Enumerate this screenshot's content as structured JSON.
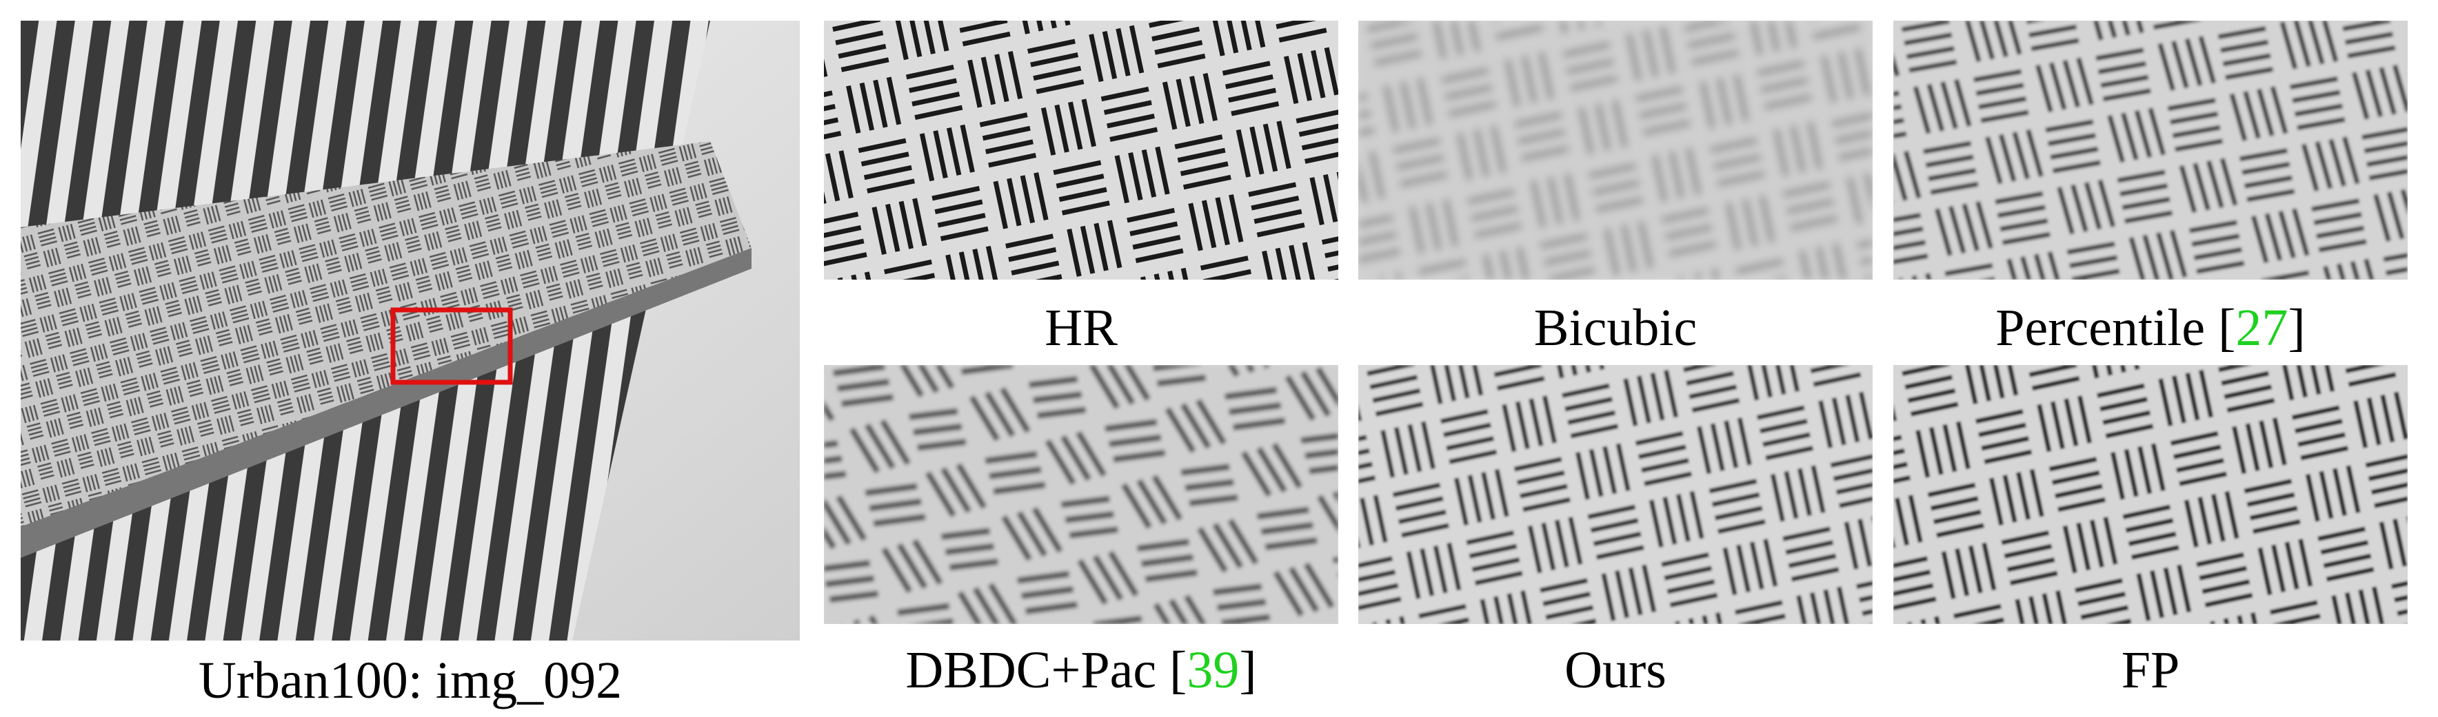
{
  "figure": {
    "main_caption": "Urban100: img_092",
    "panels": [
      {
        "label": "HR",
        "cite": ""
      },
      {
        "label": "Bicubic",
        "cite": ""
      },
      {
        "label": "Percentile [",
        "cite": "27",
        "close": "]"
      },
      {
        "label": "DBDC+Pac [",
        "cite": "39",
        "close": "]"
      },
      {
        "label": "Ours",
        "cite": ""
      },
      {
        "label": "FP",
        "cite": ""
      }
    ],
    "colors": {
      "highlight_box": "#e01010",
      "citation": "#1fd11f"
    }
  }
}
